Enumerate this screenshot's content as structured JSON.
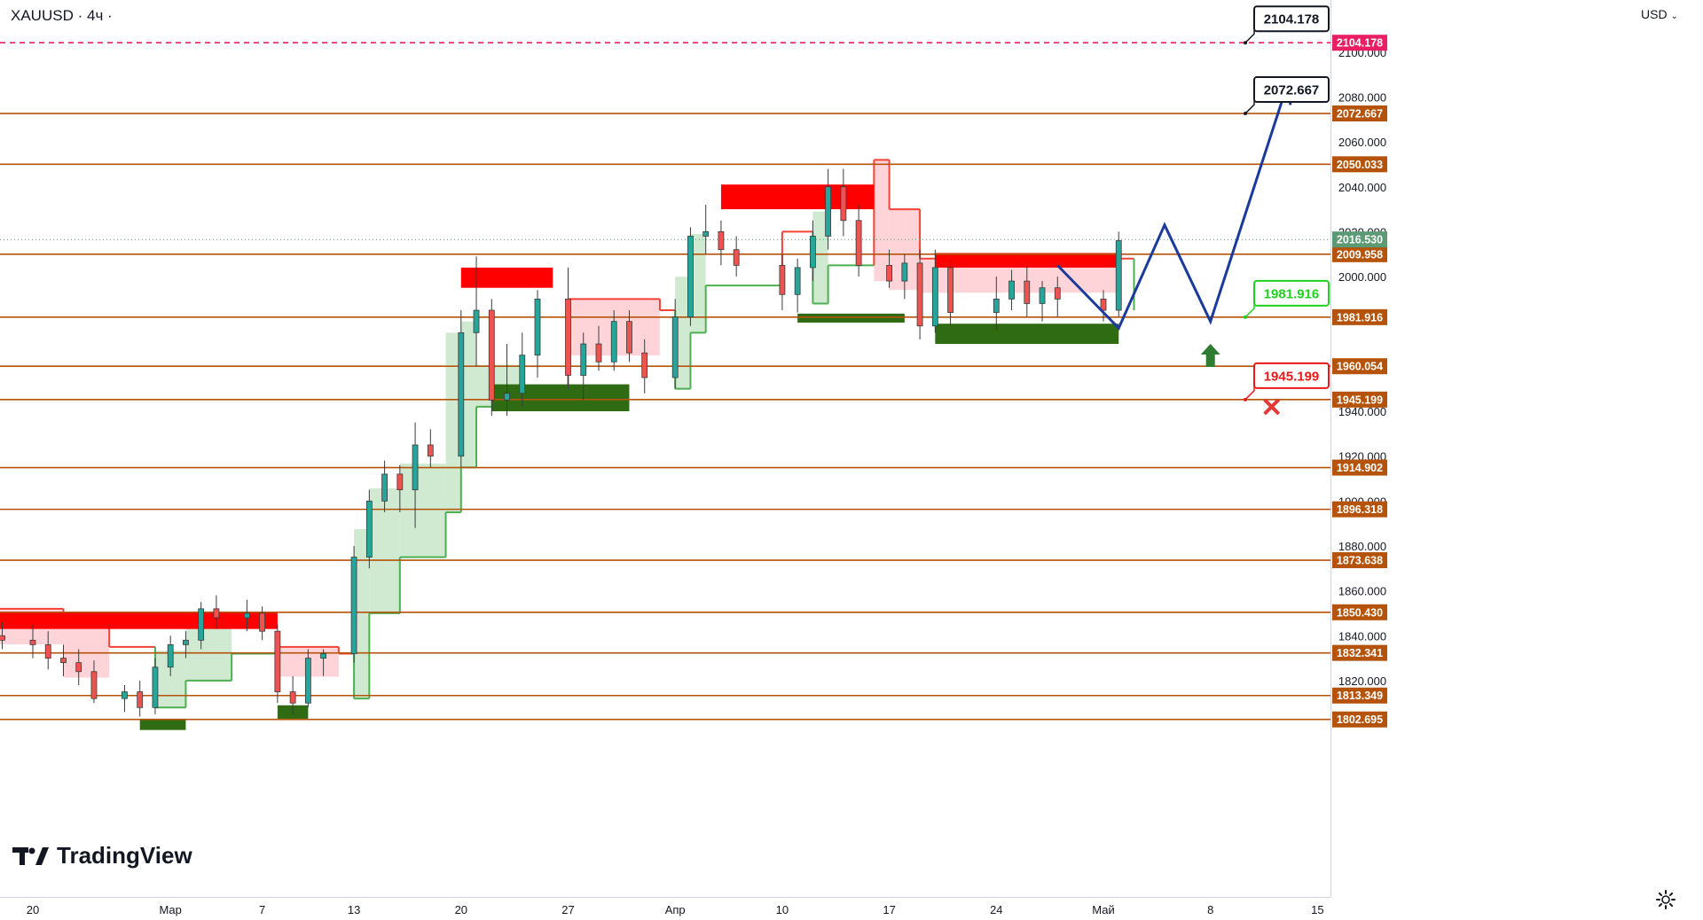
{
  "header": {
    "symbol": "XAUUSD",
    "sep": "·",
    "interval": "4ч",
    "dot": "·"
  },
  "axis": {
    "currency": "USD"
  },
  "logo": {
    "text": "TradingView"
  },
  "icons": {
    "settings": "gear-icon",
    "logo": "tradingview-logo-icon",
    "currency_menu": "chevron-down-icon"
  },
  "colors": {
    "level_line": "#b45309",
    "level_label_bg": "#b45309",
    "target_dash": "#e91e63",
    "target_label_bg": "#e91e63",
    "last_price_bg": "#5b9a74",
    "bull": "#26a69a",
    "bear": "#ef5350",
    "candle": "#3b3b3b",
    "supply": "#ff0000",
    "demand": "#2e6b12",
    "trail_up": "#4caf50",
    "trail_dn": "#f44336",
    "trail_up_fill": "#c8e6c9",
    "trail_dn_fill": "#ffcdd2",
    "projection": "#1a3a9c",
    "buy_arrow": "#2e7d32",
    "stop_cross": "#e53935",
    "callout_green": "#1fd11f",
    "callout_red": "#e81818",
    "callout_black": "#131722"
  },
  "chart_data": {
    "type": "candlestick",
    "symbol": "XAUUSD",
    "timeframe": "4h",
    "ylim": [
      1795,
      2118
    ],
    "y_ticks": [
      1820,
      1840,
      1860,
      1880,
      1900,
      1920,
      1940,
      2000,
      2020,
      2040,
      2060,
      2080,
      2100
    ],
    "x_ticks": [
      {
        "label": "20",
        "date": "2023-02-20"
      },
      {
        "label": "Мар",
        "date": "2023-03-01"
      },
      {
        "label": "7",
        "date": "2023-03-07"
      },
      {
        "label": "13",
        "date": "2023-03-13"
      },
      {
        "label": "20",
        "date": "2023-03-20"
      },
      {
        "label": "27",
        "date": "2023-03-27"
      },
      {
        "label": "Апр",
        "date": "2023-04-03"
      },
      {
        "label": "10",
        "date": "2023-04-10"
      },
      {
        "label": "17",
        "date": "2023-04-17"
      },
      {
        "label": "24",
        "date": "2023-04-24"
      },
      {
        "label": "Май",
        "date": "2023-05-01"
      },
      {
        "label": "8",
        "date": "2023-05-08"
      },
      {
        "label": "15",
        "date": "2023-05-15"
      }
    ],
    "levels": [
      {
        "price": 2072.667,
        "label": "2072.667"
      },
      {
        "price": 2050.033,
        "label": "2050.033"
      },
      {
        "price": 2009.958,
        "label": "2009.958"
      },
      {
        "price": 1981.916,
        "label": "1981.916"
      },
      {
        "price": 1960.054,
        "label": "1960.054"
      },
      {
        "price": 1945.199,
        "label": "1945.199"
      },
      {
        "price": 1914.902,
        "label": "1914.902"
      },
      {
        "price": 1896.318,
        "label": "1896.318"
      },
      {
        "price": 1873.638,
        "label": "1873.638"
      },
      {
        "price": 1850.43,
        "label": "1850.430"
      },
      {
        "price": 1832.341,
        "label": "1832.341"
      },
      {
        "price": 1813.349,
        "label": "1813.349"
      },
      {
        "price": 1802.695,
        "label": "1802.695"
      }
    ],
    "target_dashed": {
      "price": 2104.178,
      "label": "2104.178"
    },
    "last_price": {
      "price": 2016.53,
      "label": "2016.530"
    },
    "callouts": [
      {
        "text": "2104.178",
        "price": 2104.178,
        "style": "black"
      },
      {
        "text": "2072.667",
        "price": 2072.667,
        "style": "black"
      },
      {
        "text": "1981.916",
        "price": 1981.916,
        "style": "green"
      },
      {
        "text": "1945.199",
        "price": 1945.199,
        "style": "red"
      }
    ],
    "supply_zones": [
      {
        "start": "2023-02-14",
        "end": "2023-03-08",
        "top": 1850.5,
        "bottom": 1843.0
      },
      {
        "start": "2023-03-20",
        "end": "2023-03-26",
        "top": 2004.0,
        "bottom": 1995.0
      },
      {
        "start": "2023-04-06",
        "end": "2023-04-16",
        "top": 2041.0,
        "bottom": 2030.0
      },
      {
        "start": "2023-04-20",
        "end": "2023-05-02",
        "top": 2010.5,
        "bottom": 2004.0
      }
    ],
    "demand_zones": [
      {
        "start": "2023-02-27",
        "end": "2023-03-02",
        "top": 1803.0,
        "bottom": 1798.0
      },
      {
        "start": "2023-03-08",
        "end": "2023-03-10",
        "top": 1809.0,
        "bottom": 1803.0
      },
      {
        "start": "2023-03-22",
        "end": "2023-03-31",
        "top": 1952.0,
        "bottom": 1940.0
      },
      {
        "start": "2023-04-11",
        "end": "2023-04-18",
        "top": 1983.5,
        "bottom": 1979.5
      },
      {
        "start": "2023-04-20",
        "end": "2023-05-02",
        "top": 1979.0,
        "bottom": 1970.0
      }
    ],
    "projection_path": [
      {
        "date": "2023-04-28",
        "price": 2005
      },
      {
        "date": "2023-05-02",
        "price": 1977
      },
      {
        "date": "2023-05-05",
        "price": 2023
      },
      {
        "date": "2023-05-08",
        "price": 1980
      },
      {
        "date": "2023-05-13",
        "price": 2085
      }
    ],
    "buy_marker": {
      "date": "2023-05-08",
      "price": 1970
    },
    "stop_marker": {
      "date": "2023-05-12",
      "price": 1942
    },
    "candles": [
      {
        "d": "2023-02-14",
        "o": 1850,
        "h": 1855,
        "l": 1833,
        "c": 1838
      },
      {
        "d": "2023-02-15",
        "o": 1838,
        "h": 1845,
        "l": 1830,
        "c": 1840
      },
      {
        "d": "2023-02-16",
        "o": 1840,
        "h": 1848,
        "l": 1832,
        "c": 1845
      },
      {
        "d": "2023-02-17",
        "o": 1845,
        "h": 1850,
        "l": 1836,
        "c": 1840
      },
      {
        "d": "2023-02-18",
        "o": 1840,
        "h": 1846,
        "l": 1834,
        "c": 1838
      },
      {
        "d": "2023-02-20",
        "o": 1838,
        "h": 1845,
        "l": 1830,
        "c": 1836
      },
      {
        "d": "2023-02-21",
        "o": 1836,
        "h": 1842,
        "l": 1825,
        "c": 1830
      },
      {
        "d": "2023-02-22",
        "o": 1830,
        "h": 1836,
        "l": 1822,
        "c": 1828
      },
      {
        "d": "2023-02-23",
        "o": 1828,
        "h": 1834,
        "l": 1818,
        "c": 1824
      },
      {
        "d": "2023-02-24",
        "o": 1824,
        "h": 1829,
        "l": 1810,
        "c": 1812
      },
      {
        "d": "2023-02-26",
        "o": 1812,
        "h": 1818,
        "l": 1806,
        "c": 1815
      },
      {
        "d": "2023-02-27",
        "o": 1815,
        "h": 1820,
        "l": 1804,
        "c": 1808
      },
      {
        "d": "2023-02-28",
        "o": 1808,
        "h": 1830,
        "l": 1805,
        "c": 1826
      },
      {
        "d": "2023-03-01",
        "o": 1826,
        "h": 1840,
        "l": 1822,
        "c": 1836
      },
      {
        "d": "2023-03-02",
        "o": 1836,
        "h": 1842,
        "l": 1830,
        "c": 1838
      },
      {
        "d": "2023-03-03",
        "o": 1838,
        "h": 1855,
        "l": 1834,
        "c": 1852
      },
      {
        "d": "2023-03-04",
        "o": 1852,
        "h": 1858,
        "l": 1843,
        "c": 1848
      },
      {
        "d": "2023-03-06",
        "o": 1848,
        "h": 1856,
        "l": 1842,
        "c": 1850
      },
      {
        "d": "2023-03-07",
        "o": 1850,
        "h": 1853,
        "l": 1838,
        "c": 1842
      },
      {
        "d": "2023-03-08",
        "o": 1842,
        "h": 1845,
        "l": 1810,
        "c": 1815
      },
      {
        "d": "2023-03-09",
        "o": 1815,
        "h": 1822,
        "l": 1805,
        "c": 1810
      },
      {
        "d": "2023-03-10",
        "o": 1810,
        "h": 1834,
        "l": 1808,
        "c": 1830
      },
      {
        "d": "2023-03-11",
        "o": 1830,
        "h": 1834,
        "l": 1822,
        "c": 1832
      },
      {
        "d": "2023-03-13",
        "o": 1832,
        "h": 1880,
        "l": 1828,
        "c": 1875
      },
      {
        "d": "2023-03-14",
        "o": 1875,
        "h": 1905,
        "l": 1870,
        "c": 1900
      },
      {
        "d": "2023-03-15",
        "o": 1900,
        "h": 1918,
        "l": 1895,
        "c": 1912
      },
      {
        "d": "2023-03-16",
        "o": 1912,
        "h": 1916,
        "l": 1895,
        "c": 1905
      },
      {
        "d": "2023-03-17",
        "o": 1905,
        "h": 1935,
        "l": 1888,
        "c": 1925
      },
      {
        "d": "2023-03-18",
        "o": 1925,
        "h": 1932,
        "l": 1915,
        "c": 1920
      },
      {
        "d": "2023-03-20",
        "o": 1920,
        "h": 1985,
        "l": 1915,
        "c": 1975
      },
      {
        "d": "2023-03-21",
        "o": 1975,
        "h": 2009,
        "l": 1960,
        "c": 1985
      },
      {
        "d": "2023-03-22",
        "o": 1985,
        "h": 1990,
        "l": 1938,
        "c": 1945
      },
      {
        "d": "2023-03-23",
        "o": 1945,
        "h": 1970,
        "l": 1938,
        "c": 1948
      },
      {
        "d": "2023-03-24",
        "o": 1948,
        "h": 1975,
        "l": 1942,
        "c": 1965
      },
      {
        "d": "2023-03-25",
        "o": 1965,
        "h": 1994,
        "l": 1955,
        "c": 1990
      },
      {
        "d": "2023-03-27",
        "o": 1990,
        "h": 2004,
        "l": 1950,
        "c": 1956
      },
      {
        "d": "2023-03-28",
        "o": 1956,
        "h": 1975,
        "l": 1945,
        "c": 1970
      },
      {
        "d": "2023-03-29",
        "o": 1970,
        "h": 1978,
        "l": 1958,
        "c": 1962
      },
      {
        "d": "2023-03-30",
        "o": 1962,
        "h": 1985,
        "l": 1958,
        "c": 1980
      },
      {
        "d": "2023-03-31",
        "o": 1980,
        "h": 1985,
        "l": 1962,
        "c": 1966
      },
      {
        "d": "2023-04-01",
        "o": 1966,
        "h": 1972,
        "l": 1948,
        "c": 1955
      },
      {
        "d": "2023-04-03",
        "o": 1955,
        "h": 1990,
        "l": 1950,
        "c": 1982
      },
      {
        "d": "2023-04-04",
        "o": 1982,
        "h": 2022,
        "l": 1978,
        "c": 2018
      },
      {
        "d": "2023-04-05",
        "o": 2018,
        "h": 2032,
        "l": 2010,
        "c": 2020
      },
      {
        "d": "2023-04-06",
        "o": 2020,
        "h": 2025,
        "l": 2005,
        "c": 2012
      },
      {
        "d": "2023-04-07",
        "o": 2012,
        "h": 2018,
        "l": 2000,
        "c": 2005
      },
      {
        "d": "2023-04-10",
        "o": 2005,
        "h": 2010,
        "l": 1985,
        "c": 1992
      },
      {
        "d": "2023-04-11",
        "o": 1992,
        "h": 2008,
        "l": 1984,
        "c": 2004
      },
      {
        "d": "2023-04-12",
        "o": 2004,
        "h": 2025,
        "l": 1998,
        "c": 2018
      },
      {
        "d": "2023-04-13",
        "o": 2018,
        "h": 2048,
        "l": 2012,
        "c": 2040
      },
      {
        "d": "2023-04-14",
        "o": 2040,
        "h": 2048,
        "l": 2018,
        "c": 2025
      },
      {
        "d": "2023-04-15",
        "o": 2025,
        "h": 2032,
        "l": 2000,
        "c": 2005
      },
      {
        "d": "2023-04-17",
        "o": 2005,
        "h": 2012,
        "l": 1995,
        "c": 1998
      },
      {
        "d": "2023-04-18",
        "o": 1998,
        "h": 2010,
        "l": 1990,
        "c": 2006
      },
      {
        "d": "2023-04-19",
        "o": 2006,
        "h": 2012,
        "l": 1972,
        "c": 1978
      },
      {
        "d": "2023-04-20",
        "o": 1978,
        "h": 2012,
        "l": 1975,
        "c": 2004
      },
      {
        "d": "2023-04-21",
        "o": 2004,
        "h": 2008,
        "l": 1978,
        "c": 1984
      },
      {
        "d": "2023-04-24",
        "o": 1984,
        "h": 2000,
        "l": 1976,
        "c": 1990
      },
      {
        "d": "2023-04-25",
        "o": 1990,
        "h": 2003,
        "l": 1985,
        "c": 1998
      },
      {
        "d": "2023-04-26",
        "o": 1998,
        "h": 2005,
        "l": 1982,
        "c": 1988
      },
      {
        "d": "2023-04-27",
        "o": 1988,
        "h": 1998,
        "l": 1980,
        "c": 1995
      },
      {
        "d": "2023-04-28",
        "o": 1995,
        "h": 2000,
        "l": 1982,
        "c": 1990
      },
      {
        "d": "2023-05-01",
        "o": 1990,
        "h": 1994,
        "l": 1980,
        "c": 1985
      },
      {
        "d": "2023-05-02",
        "o": 1985,
        "h": 2020,
        "l": 1982,
        "c": 2016
      }
    ],
    "trail_stop": [
      {
        "d": "2023-02-14",
        "v": 1862,
        "dir": "dn"
      },
      {
        "d": "2023-02-16",
        "v": 1852,
        "dir": "dn"
      },
      {
        "d": "2023-02-22",
        "v": 1845,
        "dir": "dn"
      },
      {
        "d": "2023-02-25",
        "v": 1835,
        "dir": "dn"
      },
      {
        "d": "2023-02-28",
        "v": 1808,
        "dir": "up"
      },
      {
        "d": "2023-03-02",
        "v": 1820,
        "dir": "up"
      },
      {
        "d": "2023-03-05",
        "v": 1832,
        "dir": "up"
      },
      {
        "d": "2023-03-08",
        "v": 1835,
        "dir": "dn"
      },
      {
        "d": "2023-03-12",
        "v": 1832,
        "dir": "dn"
      },
      {
        "d": "2023-03-13",
        "v": 1812,
        "dir": "up"
      },
      {
        "d": "2023-03-14",
        "v": 1850,
        "dir": "up"
      },
      {
        "d": "2023-03-16",
        "v": 1875,
        "dir": "up"
      },
      {
        "d": "2023-03-19",
        "v": 1895,
        "dir": "up"
      },
      {
        "d": "2023-03-20",
        "v": 1915,
        "dir": "up"
      },
      {
        "d": "2023-03-21",
        "v": 1942,
        "dir": "up"
      },
      {
        "d": "2023-03-24",
        "v": 1945,
        "dir": "up"
      },
      {
        "d": "2023-03-27",
        "v": 1990,
        "dir": "dn"
      },
      {
        "d": "2023-04-02",
        "v": 1985,
        "dir": "dn"
      },
      {
        "d": "2023-04-03",
        "v": 1950,
        "dir": "up"
      },
      {
        "d": "2023-04-04",
        "v": 1975,
        "dir": "up"
      },
      {
        "d": "2023-04-05",
        "v": 1996,
        "dir": "up"
      },
      {
        "d": "2023-04-10",
        "v": 2020,
        "dir": "dn"
      },
      {
        "d": "2023-04-12",
        "v": 1988,
        "dir": "up"
      },
      {
        "d": "2023-04-13",
        "v": 2005,
        "dir": "up"
      },
      {
        "d": "2023-04-16",
        "v": 2052,
        "dir": "dn"
      },
      {
        "d": "2023-04-17",
        "v": 2030,
        "dir": "dn"
      },
      {
        "d": "2023-04-19",
        "v": 2008,
        "dir": "dn"
      },
      {
        "d": "2023-05-02",
        "v": 2008,
        "dir": "dn"
      },
      {
        "d": "2023-05-03",
        "v": 1985,
        "dir": "up"
      }
    ]
  }
}
